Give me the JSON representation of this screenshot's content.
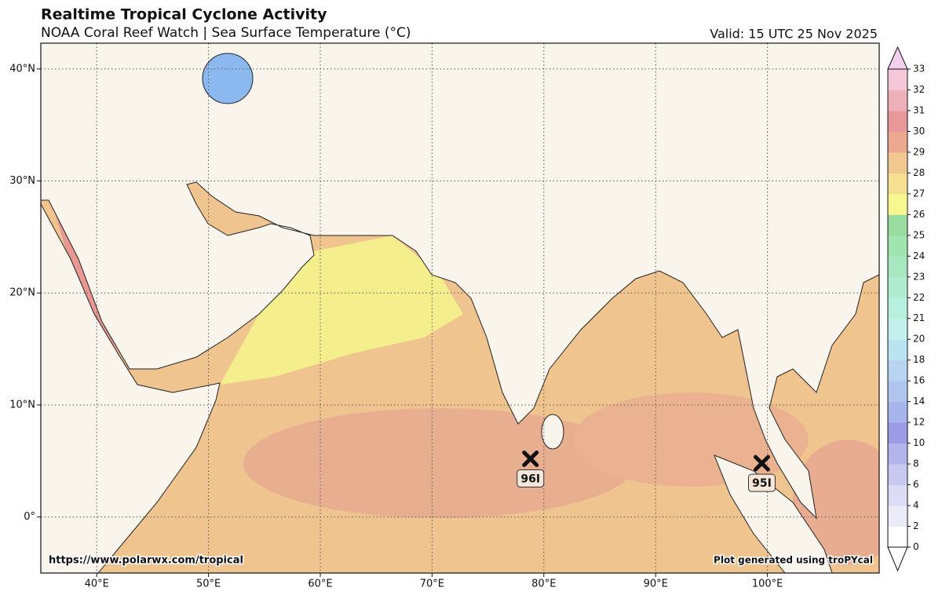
{
  "header": {
    "title": "Realtime Tropical Cyclone Activity",
    "subtitle": "NOAA Coral Reef Watch | Sea Surface Temperature (°C)",
    "valid": "Valid: 15 UTC 25 Nov 2025"
  },
  "footer": {
    "url": "https://www.polarwx.com/tropical",
    "credit": "Plot generated using troPYcal"
  },
  "map": {
    "xlim": [
      35,
      110
    ],
    "ylim": [
      -5,
      42.3
    ],
    "xticks": [
      {
        "value": 40,
        "label": "40°E"
      },
      {
        "value": 50,
        "label": "50°E"
      },
      {
        "value": 60,
        "label": "60°E"
      },
      {
        "value": 70,
        "label": "70°E"
      },
      {
        "value": 80,
        "label": "80°E"
      },
      {
        "value": 90,
        "label": "90°E"
      },
      {
        "value": 100,
        "label": "100°E"
      }
    ],
    "yticks": [
      {
        "value": 0,
        "label": "0°"
      },
      {
        "value": 10,
        "label": "10°N"
      },
      {
        "value": 20,
        "label": "20°N"
      },
      {
        "value": 30,
        "label": "30°N"
      },
      {
        "value": 40,
        "label": "40°N"
      }
    ],
    "grid": true,
    "storms": [
      {
        "name": "96I",
        "lon": 78.8,
        "lat": 5.2
      },
      {
        "name": "95I",
        "lon": 99.5,
        "lat": 4.8
      }
    ]
  },
  "colorbar": {
    "ticks": [
      0,
      2,
      4,
      6,
      8,
      10,
      12,
      14,
      16,
      18,
      20,
      21,
      22,
      23,
      24,
      25,
      26,
      27,
      28,
      29,
      30,
      31,
      32,
      33
    ],
    "colors": [
      "#ffffff",
      "#ececf8",
      "#dcdcf4",
      "#c8c8f0",
      "#b4b4ec",
      "#9c9ce6",
      "#a8b4ec",
      "#b0c4ee",
      "#b8d4f0",
      "#bce4f0",
      "#c4f0ec",
      "#b8f0e0",
      "#b0ecd0",
      "#a8e8c0",
      "#a0e4b0",
      "#98dca0",
      "#f8f890",
      "#f4e090",
      "#f0c890",
      "#eca890",
      "#e89898",
      "#eeb0b8",
      "#f4c8d8"
    ],
    "over": "#f4d0ec",
    "under": "#ffffff"
  }
}
